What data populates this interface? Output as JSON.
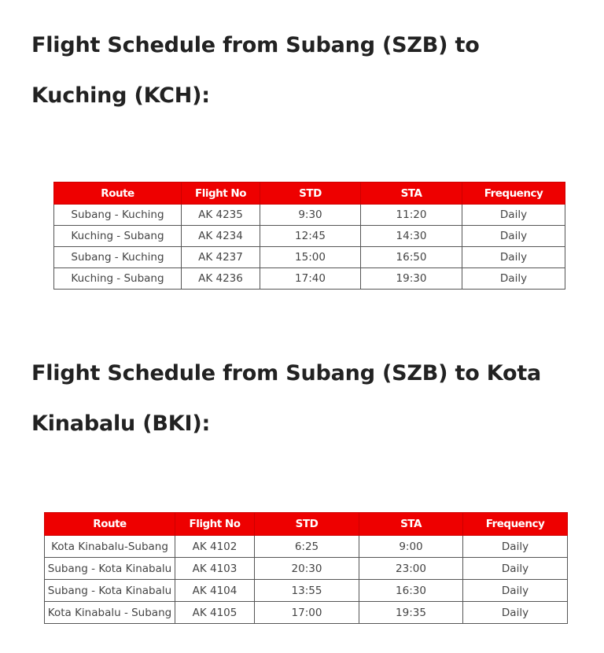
{
  "sections": [
    {
      "heading": "Flight Schedule from Subang (SZB) to Kuching (KCH):",
      "columns": [
        "Route",
        "Flight No",
        "STD",
        "STA",
        "Frequency"
      ],
      "rows": [
        [
          "Subang - Kuching",
          "AK 4235",
          "9:30",
          "11:20",
          "Daily"
        ],
        [
          "Kuching - Subang",
          "AK 4234",
          "12:45",
          "14:30",
          "Daily"
        ],
        [
          "Subang - Kuching",
          "AK 4237",
          "15:00",
          "16:50",
          "Daily"
        ],
        [
          "Kuching - Subang",
          "AK 4236",
          "17:40",
          "19:30",
          "Daily"
        ]
      ]
    },
    {
      "heading": "Flight Schedule from Subang (SZB) to Kota Kinabalu (BKI):",
      "columns": [
        "Route",
        "Flight No",
        "STD",
        "STA",
        "Frequency"
      ],
      "rows": [
        [
          "Kota Kinabalu-Subang",
          "AK 4102",
          "6:25",
          "9:00",
          "Daily"
        ],
        [
          "Subang - Kota Kinabalu",
          "AK 4103",
          "20:30",
          "23:00",
          "Daily"
        ],
        [
          "Subang - Kota Kinabalu",
          "AK 4104",
          "13:55",
          "16:30",
          "Daily"
        ],
        [
          "Kota Kinabalu - Subang",
          "AK 4105",
          "17:00",
          "19:35",
          "Daily"
        ]
      ]
    }
  ],
  "colors": {
    "header_bg": "#ee0000",
    "header_text": "#ffffff"
  }
}
